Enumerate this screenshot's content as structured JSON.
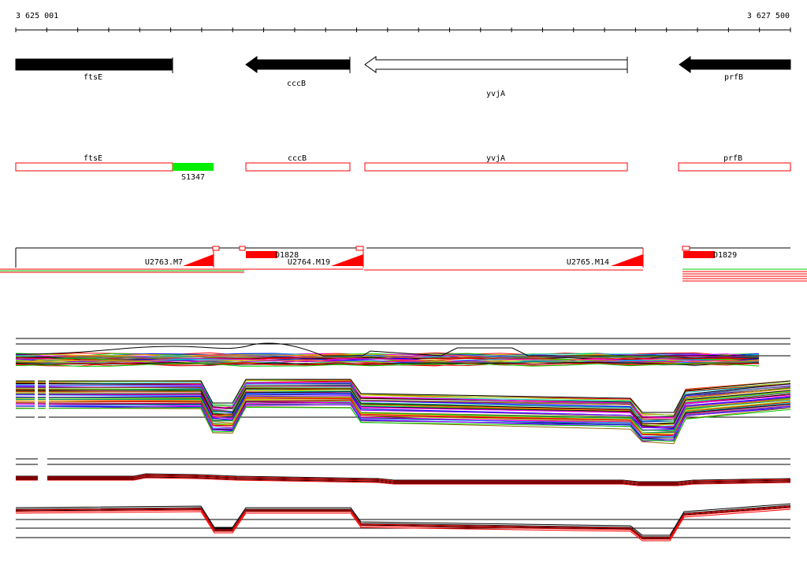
{
  "ruler": {
    "start_label": "3 625 001",
    "end_label": "3 627 500"
  },
  "genes": [
    {
      "name": "ftsE",
      "strand": "-",
      "fill": "#000000"
    },
    {
      "name": "cccB",
      "strand": "-",
      "fill": "#000000"
    },
    {
      "name": "yvjA",
      "strand": "-",
      "fill": "#ffffff"
    },
    {
      "name": "prfB",
      "strand": "-",
      "fill": "#000000"
    }
  ],
  "annotations": {
    "boxes": [
      "ftsE",
      "cccB",
      "yvjA",
      "prfB"
    ],
    "green_feature": "S1347"
  },
  "features": {
    "red_blocks": [
      "D1828",
      "D1829"
    ],
    "wedges": [
      "U2763.M7",
      "U2764.M19",
      "U2765.M14"
    ]
  },
  "colors": {
    "gene_stroke": "#000000",
    "annotation_box": "#ff0000",
    "green_feature": "#00ee00",
    "red_feature": "#ff0000"
  }
}
